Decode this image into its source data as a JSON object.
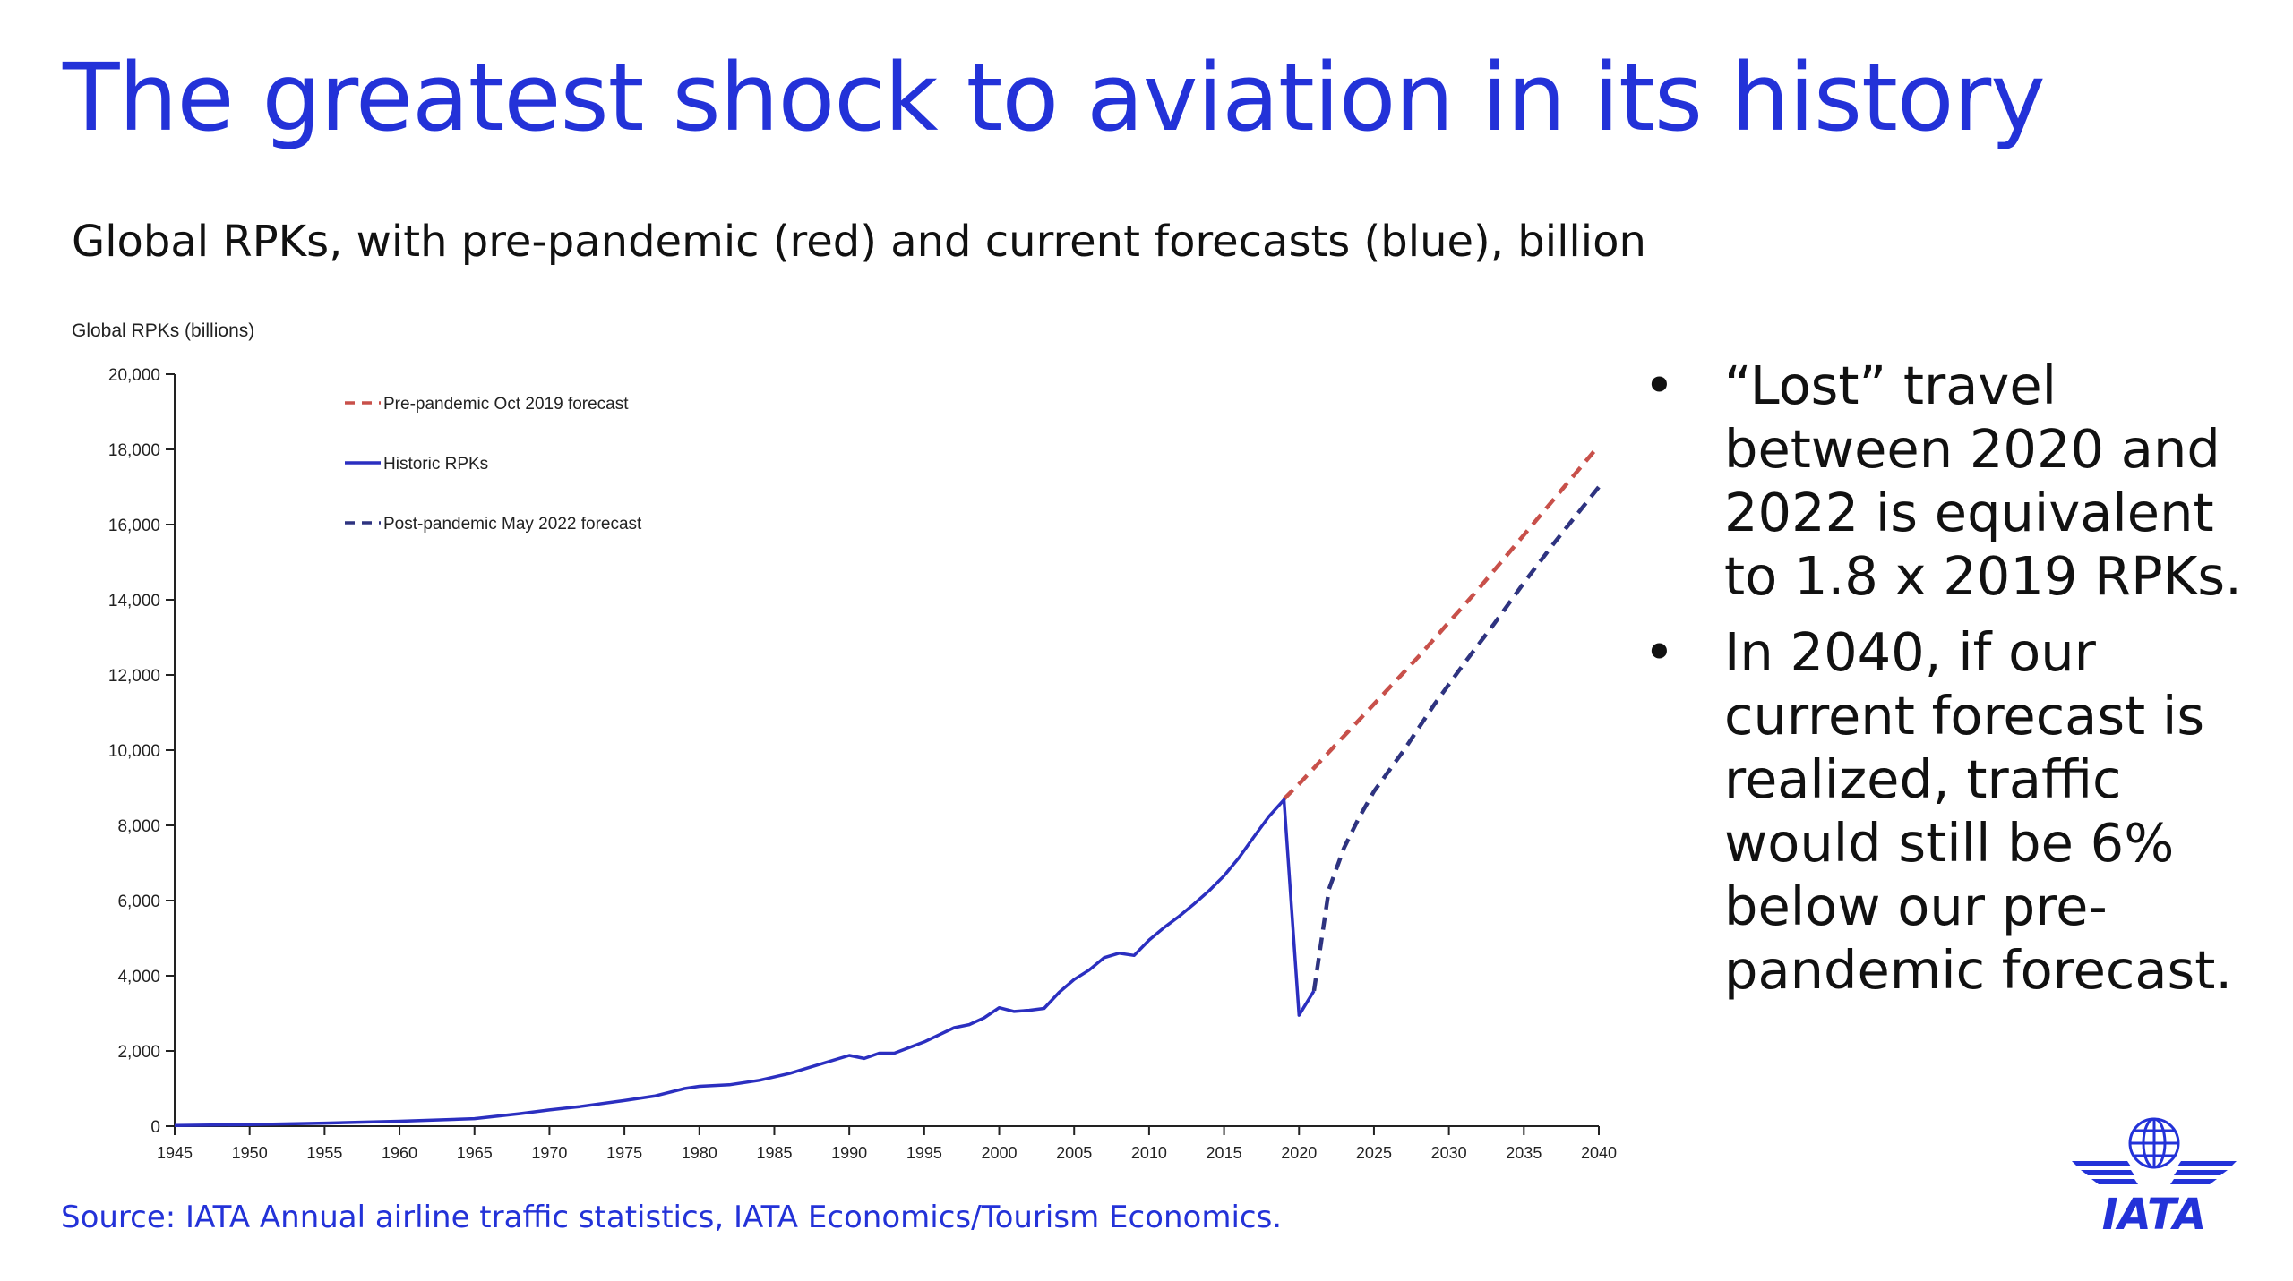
{
  "slide": {
    "title": "The greatest shock to aviation in its history",
    "subtitle": "Global RPKs, with pre-pandemic (red) and current forecasts (blue), billion",
    "bullets": [
      "“Lost” travel between 2020 and 2022 is equivalent to 1.8 x 2019 RPKs.",
      "In 2040, if our current forecast is realized, traffic would still be 6% below our pre-pandemic forecast."
    ],
    "bullet_marker": "•",
    "source": "Source: IATA Annual airline traffic statistics, IATA Economics/Tourism Economics.",
    "logo_text": "IATA"
  },
  "colors": {
    "title": "#2332d8",
    "historic": "#2b2fc0",
    "post_forecast": "#2e3380",
    "pre_forecast": "#c8504a",
    "axis": "#222222"
  },
  "chart_data": {
    "type": "line",
    "ylabel": "Global RPKs (billions)",
    "xlim": [
      1945,
      2040
    ],
    "ylim": [
      0,
      20000
    ],
    "xticks": [
      1945,
      1950,
      1955,
      1960,
      1965,
      1970,
      1975,
      1980,
      1985,
      1990,
      1995,
      2000,
      2005,
      2010,
      2015,
      2020,
      2025,
      2030,
      2035,
      2040
    ],
    "yticks": [
      0,
      2000,
      4000,
      6000,
      8000,
      10000,
      12000,
      14000,
      16000,
      18000,
      20000
    ],
    "ytick_labels": [
      "0",
      "2,000",
      "4,000",
      "6,000",
      "8,000",
      "10,000",
      "12,000",
      "14,000",
      "16,000",
      "18,000",
      "20,000"
    ],
    "legend": {
      "placement": "top-left",
      "entries": [
        "Pre-pandemic Oct 2019 forecast",
        "Historic RPKs",
        "Post-pandemic May 2022 forecast"
      ]
    },
    "series": [
      {
        "name": "Pre-pandemic Oct 2019 forecast",
        "style": "dashed",
        "color": "#c8504a",
        "x": [
          2019,
          2020,
          2022,
          2024,
          2026,
          2028,
          2030,
          2032,
          2034,
          2036,
          2038,
          2040
        ],
        "y": [
          8700,
          9100,
          9950,
          10800,
          11650,
          12500,
          13400,
          14300,
          15250,
          16200,
          17150,
          18100
        ]
      },
      {
        "name": "Historic RPKs",
        "style": "solid",
        "color": "#2b2fc0",
        "x": [
          1945,
          1950,
          1955,
          1960,
          1965,
          1968,
          1970,
          1972,
          1975,
          1977,
          1979,
          1980,
          1982,
          1984,
          1986,
          1988,
          1990,
          1991,
          1992,
          1993,
          1995,
          1997,
          1998,
          1999,
          2000,
          2001,
          2002,
          2003,
          2004,
          2005,
          2006,
          2007,
          2008,
          2009,
          2010,
          2011,
          2012,
          2013,
          2014,
          2015,
          2016,
          2017,
          2018,
          2019,
          2020,
          2021
        ],
        "y": [
          20,
          40,
          80,
          130,
          200,
          330,
          430,
          520,
          680,
          800,
          1000,
          1060,
          1100,
          1220,
          1400,
          1640,
          1880,
          1800,
          1940,
          1940,
          2240,
          2620,
          2700,
          2880,
          3150,
          3050,
          3080,
          3130,
          3560,
          3900,
          4150,
          4480,
          4600,
          4540,
          4950,
          5280,
          5580,
          5910,
          6260,
          6660,
          7140,
          7700,
          8240,
          8680,
          2950,
          3600
        ]
      },
      {
        "name": "Post-pandemic May 2022 forecast",
        "style": "dashed",
        "color": "#2e3380",
        "x": [
          2021,
          2022,
          2023,
          2024,
          2025,
          2027,
          2029,
          2031,
          2033,
          2035,
          2037,
          2040
        ],
        "y": [
          3600,
          6300,
          7400,
          8200,
          8900,
          10000,
          11200,
          12300,
          13350,
          14450,
          15500,
          17000
        ]
      }
    ]
  }
}
